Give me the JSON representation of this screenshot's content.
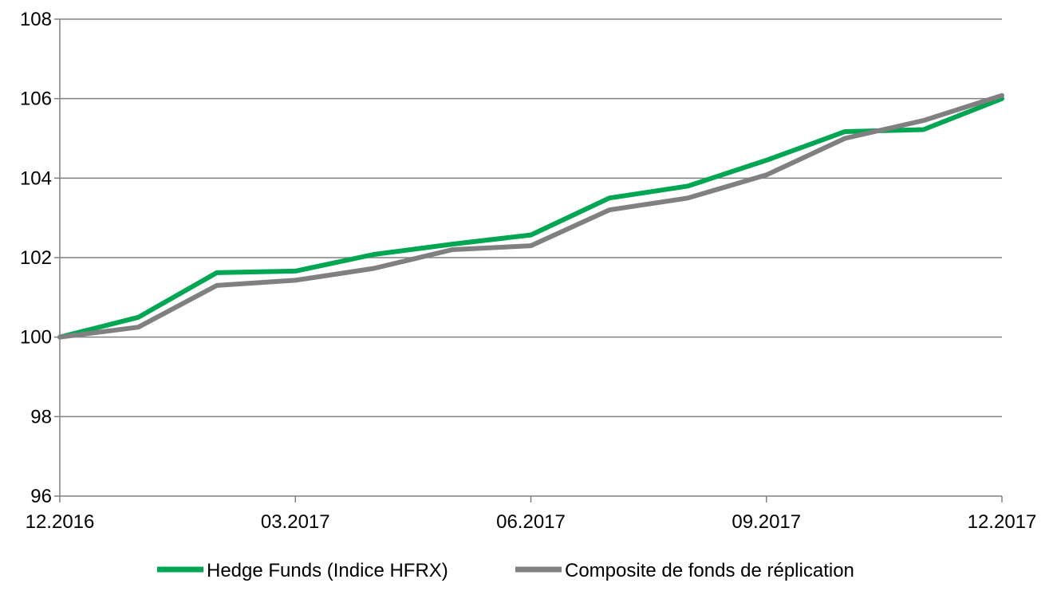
{
  "chart_data": {
    "type": "line",
    "x": [
      "12.2016",
      "01.2017",
      "02.2017",
      "03.2017",
      "04.2017",
      "05.2017",
      "06.2017",
      "07.2017",
      "08.2017",
      "09.2017",
      "10.2017",
      "11.2017",
      "12.2017"
    ],
    "x_tick_labels": [
      "12.2016",
      "03.2017",
      "06.2017",
      "09.2017",
      "12.2017"
    ],
    "y_tick_labels": [
      "96",
      "98",
      "100",
      "102",
      "104",
      "106",
      "108"
    ],
    "ylim": [
      96,
      108
    ],
    "grid": "horizontal",
    "legend_position": "bottom",
    "series": [
      {
        "name": "Hedge Funds (Indice HFRX)",
        "color": "#00a651",
        "values": [
          100.0,
          100.5,
          101.62,
          101.66,
          102.08,
          102.34,
          102.57,
          103.5,
          103.8,
          104.45,
          105.17,
          105.22,
          106.0
        ]
      },
      {
        "name": "Composite de fonds de réplication",
        "color": "#808080",
        "values": [
          100.0,
          100.25,
          101.3,
          101.43,
          101.73,
          102.2,
          102.3,
          103.2,
          103.5,
          104.08,
          105.0,
          105.45,
          106.08
        ]
      }
    ]
  },
  "colors": {
    "grid": "#808080",
    "axis": "#808080"
  }
}
